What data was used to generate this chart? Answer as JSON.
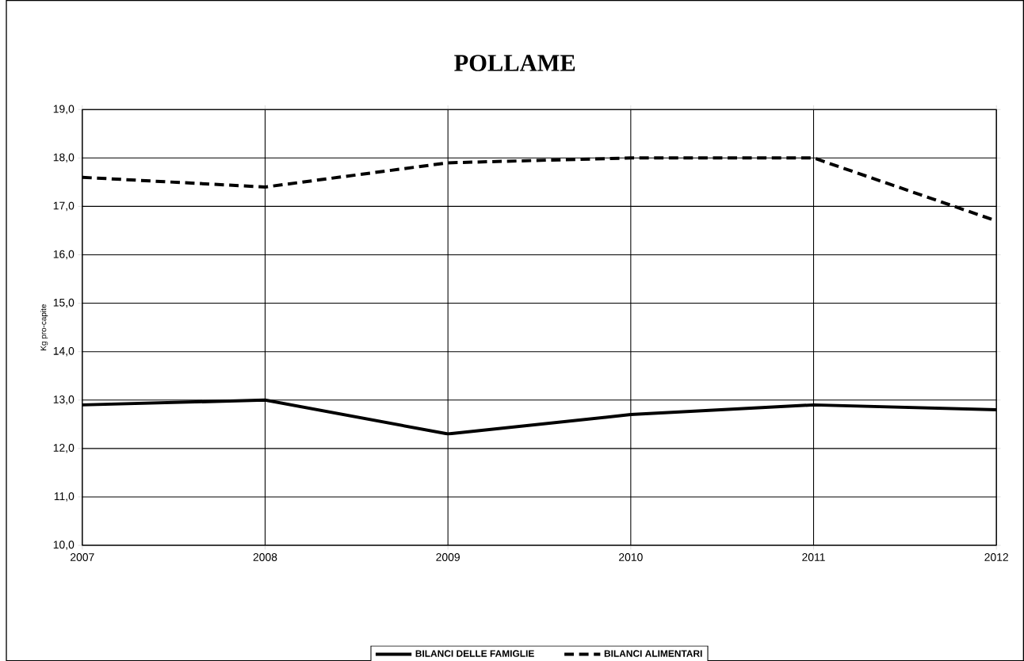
{
  "chart_data": {
    "type": "line",
    "title": "POLLAME",
    "ylabel": "Kg pro-capite",
    "x": [
      2007,
      2008,
      2009,
      2010,
      2011,
      2012
    ],
    "xlim": [
      2007,
      2012
    ],
    "xticks": [
      2007,
      2008,
      2009,
      2010,
      2011,
      2012
    ],
    "ylim": [
      10,
      19
    ],
    "yticks": [
      {
        "value": 10,
        "label": "10,0"
      },
      {
        "value": 11,
        "label": "11,0"
      },
      {
        "value": 12,
        "label": "12,0"
      },
      {
        "value": 13,
        "label": "13,0"
      },
      {
        "value": 14,
        "label": "14,0"
      },
      {
        "value": 15,
        "label": "15,0"
      },
      {
        "value": 16,
        "label": "16,0"
      },
      {
        "value": 17,
        "label": "17,0"
      },
      {
        "value": 18,
        "label": "18,0"
      },
      {
        "value": 19,
        "label": "19,0"
      }
    ],
    "grid": true,
    "legend": "bottom",
    "series": [
      {
        "name": "BILANCI DELLE FAMIGLIE",
        "color": "#000000",
        "line_style": "solid",
        "values": [
          12.9,
          13.0,
          12.3,
          12.7,
          12.9,
          12.8
        ]
      },
      {
        "name": "BILANCI ALIMENTARI",
        "color": "#000000",
        "line_style": "dashed",
        "values": [
          17.6,
          17.4,
          17.9,
          18.0,
          18.0,
          16.7
        ]
      }
    ]
  }
}
